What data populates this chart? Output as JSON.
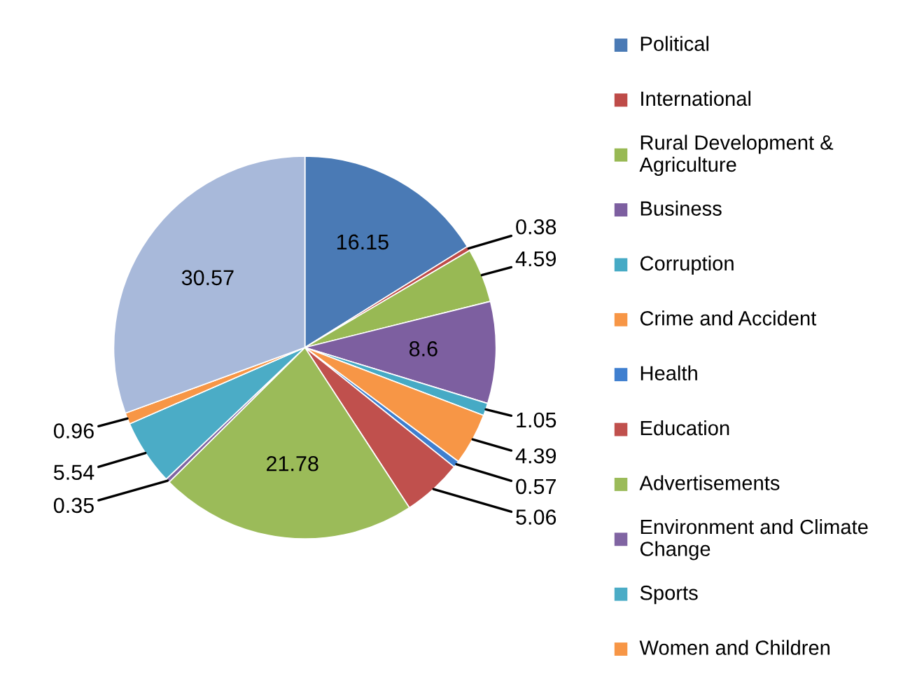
{
  "chart_data": {
    "type": "pie",
    "categories": [
      "Political",
      "International",
      "Rural Development & Agriculture",
      "Business",
      "Corruption",
      "Crime and Accident",
      "Health",
      "Education",
      "Advertisements",
      "Environment and Climate Change",
      "Sports",
      "Women and Children",
      null
    ],
    "values": [
      16.15,
      0.38,
      4.59,
      8.6,
      1.05,
      4.39,
      0.57,
      5.06,
      21.78,
      0.35,
      5.54,
      0.96,
      30.57
    ],
    "colors": [
      "#4a7ab5",
      "#be4b48",
      "#98b954",
      "#7d5fa0",
      "#46aac5",
      "#f79646",
      "#3f7fcf",
      "#c0504d",
      "#9bbb59",
      "#8064a2",
      "#4bacc6",
      "#f79646",
      "#a8b9da"
    ],
    "data_labels": true,
    "legend": "right"
  }
}
